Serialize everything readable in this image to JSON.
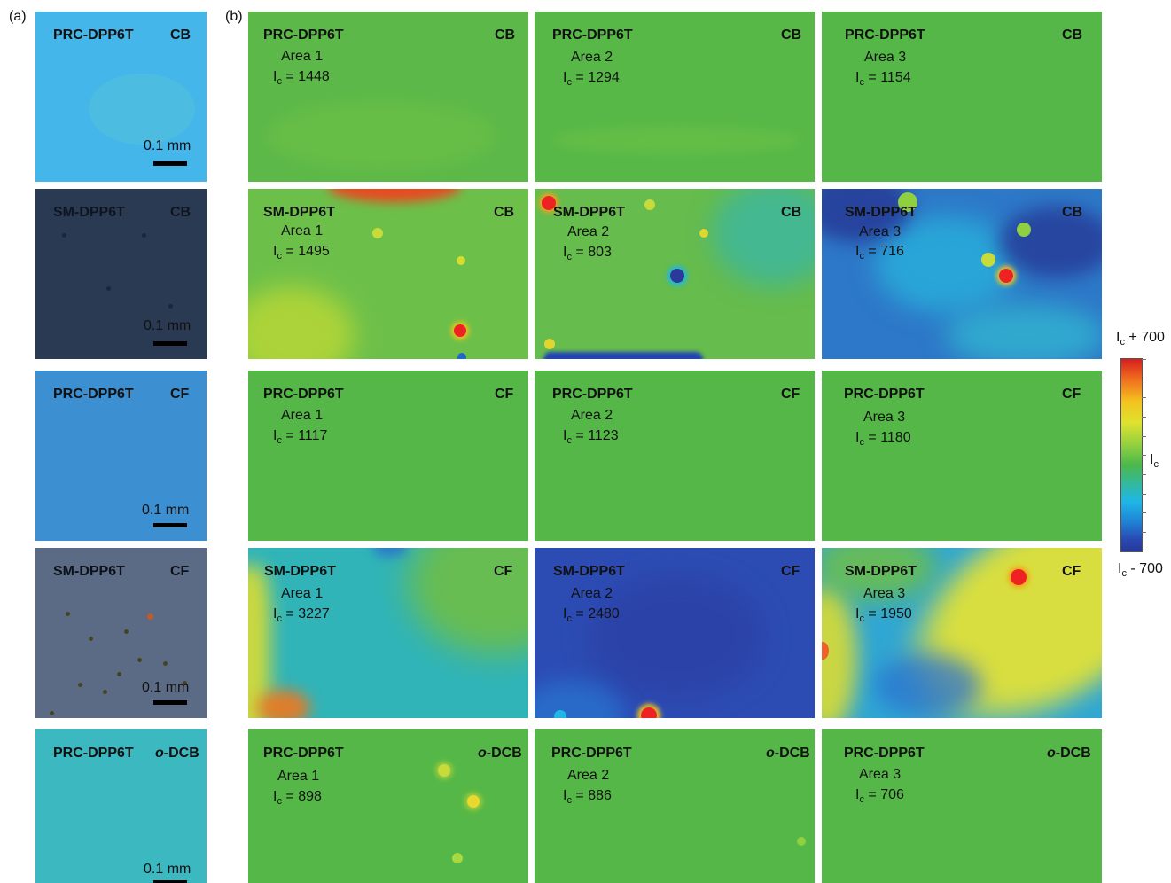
{
  "panel_labels": {
    "a": "(a)",
    "b": "(b)"
  },
  "scale_bar_text": "0.1 mm",
  "colorbar": {
    "top": "+ 700",
    "mid": "",
    "bottom": "- 700",
    "symbol": "I",
    "sub": "c"
  },
  "micro": [
    {
      "material": "PRC-DPP6T",
      "solvent": "CB",
      "bg": "#45b6ea"
    },
    {
      "material": "SM-DPP6T",
      "solvent": "CB",
      "bg": "#2a3a52"
    },
    {
      "material": "PRC-DPP6T",
      "solvent": "CF",
      "bg": "#3c8fd0"
    },
    {
      "material": "SM-DPP6T",
      "solvent": "CF",
      "bg": "#5b6b86"
    },
    {
      "material": "PRC-DPP6T",
      "solvent_italic": "o",
      "solvent": "-DCB",
      "bg": "#3cb8c0"
    }
  ],
  "maps": [
    [
      {
        "material": "PRC-DPP6T",
        "solvent": "CB",
        "area": "Area 1",
        "ic": "= 1448"
      },
      {
        "material": "PRC-DPP6T",
        "solvent": "CB",
        "area": "Area 2",
        "ic": "= 1294"
      },
      {
        "material": "PRC-DPP6T",
        "solvent": "CB",
        "area": "Area 3",
        "ic": "= 1154"
      }
    ],
    [
      {
        "material": "SM-DPP6T",
        "solvent": "CB",
        "area": "Area 1",
        "ic": "= 1495"
      },
      {
        "material": "SM-DPP6T",
        "solvent": "CB",
        "area": "Area 2",
        "ic": "= 803"
      },
      {
        "material": "SM-DPP6T",
        "solvent": "CB",
        "area": "Area 3",
        "ic": "= 716"
      }
    ],
    [
      {
        "material": "PRC-DPP6T",
        "solvent": "CF",
        "area": "Area 1",
        "ic": "= 1117"
      },
      {
        "material": "PRC-DPP6T",
        "solvent": "CF",
        "area": "Area 2",
        "ic": "= 1123"
      },
      {
        "material": "PRC-DPP6T",
        "solvent": "CF",
        "area": "Area 3",
        "ic": "= 1180"
      }
    ],
    [
      {
        "material": "SM-DPP6T",
        "solvent": "CF",
        "area": "Area 1",
        "ic": "= 3227"
      },
      {
        "material": "SM-DPP6T",
        "solvent": "CF",
        "area": "Area 2",
        "ic": "= 2480"
      },
      {
        "material": "SM-DPP6T",
        "solvent": "CF",
        "area": "Area 3",
        "ic": "= 1950"
      }
    ],
    [
      {
        "material": "PRC-DPP6T",
        "solvent_italic": "o",
        "solvent": "-DCB",
        "area": "Area 1",
        "ic": "= 898"
      },
      {
        "material": "PRC-DPP6T",
        "solvent_italic": "o",
        "solvent": "-DCB",
        "area": "Area 2",
        "ic": "= 886"
      },
      {
        "material": "PRC-DPP6T",
        "solvent_italic": "o",
        "solvent": "-DCB",
        "area": "Area 3",
        "ic": "= 706"
      }
    ]
  ]
}
